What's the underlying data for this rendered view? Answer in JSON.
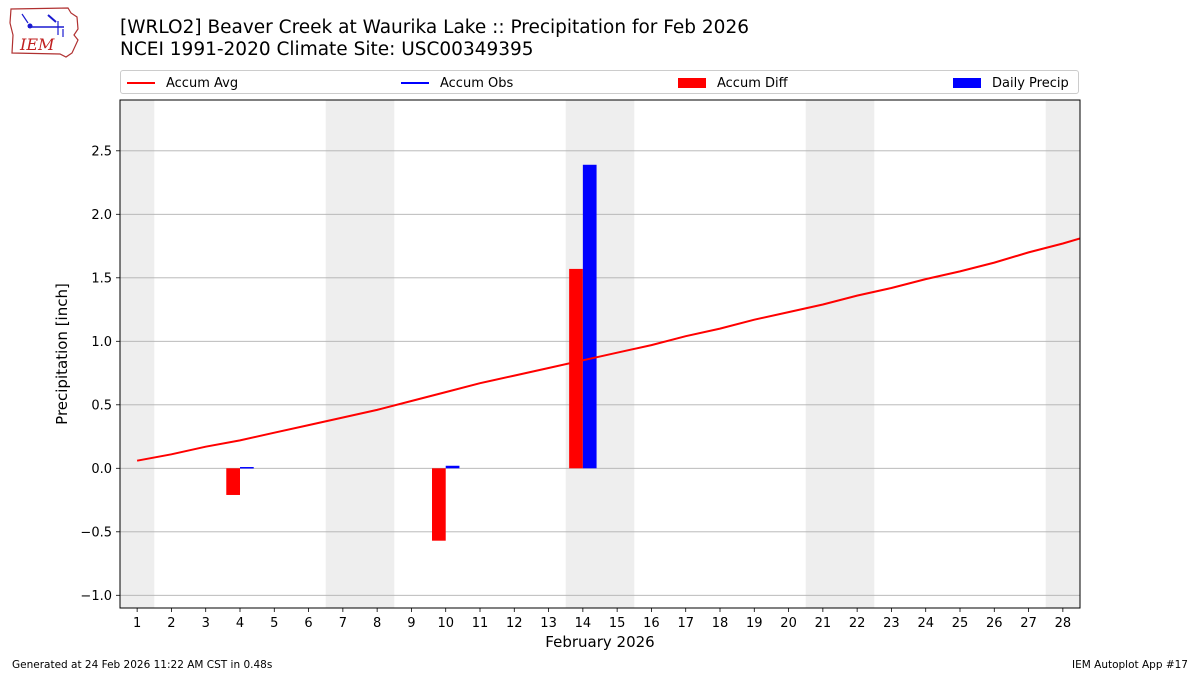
{
  "header": {
    "title_line1": "[WRLO2] Beaver Creek at Waurika Lake :: Precipitation for Feb 2026",
    "title_line2": "NCEI 1991-2020 Climate Site: USC00349395",
    "logo_text": "IEM"
  },
  "legend": {
    "accum_avg": "Accum Avg",
    "accum_obs": "Accum Obs",
    "accum_diff": "Accum Diff",
    "daily_precip": "Daily Precip"
  },
  "footer": {
    "generated": "Generated at 24 Feb 2026 11:22 AM CST in 0.48s",
    "app": "IEM Autoplot App #17"
  },
  "colors": {
    "accum_avg": "#ff0000",
    "accum_obs": "#0000ff",
    "accum_diff": "#ff0000",
    "daily_precip": "#0000ff",
    "weekend_shading": "#eeeeee",
    "grid": "#b0b0b0"
  },
  "chart_data": {
    "type": "bar",
    "title": "[WRLO2] Beaver Creek at Waurika Lake :: Precipitation for Feb 2026",
    "subtitle": "NCEI 1991-2020 Climate Site: USC00349395",
    "xlabel": "February 2026",
    "ylabel": "Precipitation [inch]",
    "xlim": [
      0.5,
      28.5
    ],
    "ylim": [
      -1.1,
      2.9
    ],
    "yticks": [
      -1.0,
      -0.5,
      0.0,
      0.5,
      1.0,
      1.5,
      2.0,
      2.5
    ],
    "ytick_labels": [
      "−1.0",
      "−0.5",
      "0.0",
      "0.5",
      "1.0",
      "1.5",
      "2.0",
      "2.5"
    ],
    "xticks": [
      1,
      2,
      3,
      4,
      5,
      6,
      7,
      8,
      9,
      10,
      11,
      12,
      13,
      14,
      15,
      16,
      17,
      18,
      19,
      20,
      21,
      22,
      23,
      24,
      25,
      26,
      27,
      28
    ],
    "grid": "horizontal",
    "legend_position": "top",
    "weekend_days": [
      1,
      7,
      8,
      14,
      15,
      21,
      22,
      28
    ],
    "series": [
      {
        "name": "Accum Avg",
        "kind": "line",
        "x": [
          1,
          2,
          3,
          4,
          5,
          6,
          7,
          8,
          9,
          10,
          11,
          12,
          13,
          14,
          15,
          16,
          17,
          18,
          19,
          20,
          21,
          22,
          23,
          24,
          25,
          26,
          27,
          28,
          28.5
        ],
        "values": [
          0.06,
          0.11,
          0.17,
          0.22,
          0.28,
          0.34,
          0.4,
          0.46,
          0.53,
          0.6,
          0.67,
          0.73,
          0.79,
          0.85,
          0.91,
          0.97,
          1.04,
          1.1,
          1.17,
          1.23,
          1.29,
          1.36,
          1.42,
          1.49,
          1.55,
          1.62,
          1.7,
          1.77,
          1.81
        ]
      },
      {
        "name": "Accum Diff",
        "kind": "bar",
        "x": [
          4,
          10,
          14
        ],
        "values": [
          -0.21,
          -0.57,
          1.57
        ]
      },
      {
        "name": "Daily Precip",
        "kind": "bar",
        "x": [
          4,
          10,
          14
        ],
        "values": [
          0.01,
          0.02,
          2.39
        ]
      }
    ]
  }
}
